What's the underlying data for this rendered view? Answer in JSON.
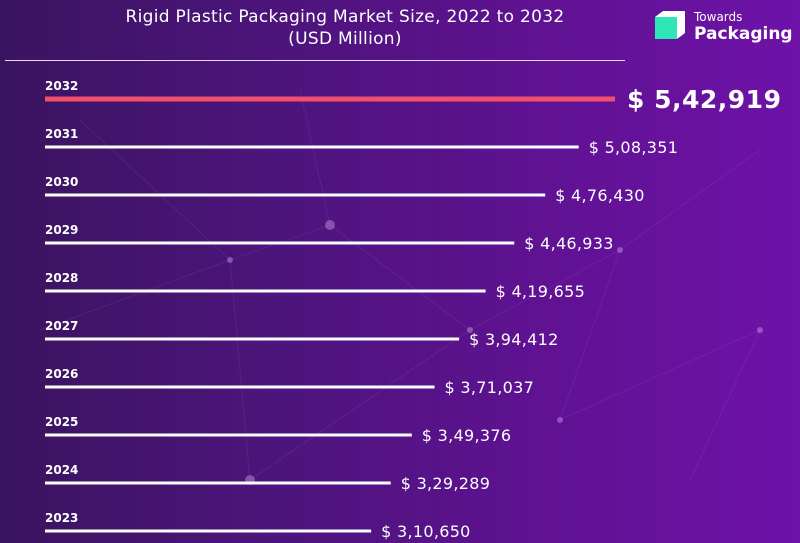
{
  "title": {
    "line1": "Rigid Plastic Packaging Market Size, 2022 to 2032",
    "line2": "(USD Million)"
  },
  "logo": {
    "small": "Towards",
    "big": "Packaging",
    "icon": "packaging-cube-icon"
  },
  "colors": {
    "highlight_bar": "#f0506e",
    "bar": "#ffffff",
    "logo_green": "#2ee6b8"
  },
  "chart_data": {
    "type": "bar",
    "orientation": "horizontal",
    "title": "Rigid Plastic Packaging Market Size, 2022 to 2032 (USD Million)",
    "unit_prefix": "$",
    "categories": [
      "2032",
      "2031",
      "2030",
      "2029",
      "2028",
      "2027",
      "2026",
      "2025",
      "2024",
      "2023"
    ],
    "values": [
      542919,
      508351,
      476430,
      446933,
      419655,
      394412,
      371037,
      349376,
      329289,
      310650
    ],
    "value_labels": [
      "$ 5,42,919",
      "$ 5,08,351",
      "$ 4,76,430",
      "$ 4,46,933",
      "$ 4,19,655",
      "$ 3,94,412",
      "$ 3,71,037",
      "$ 3,49,376",
      "$ 3,29,289",
      "$ 3,10,650"
    ],
    "highlight_category": "2032",
    "xlabel": "",
    "ylabel": ""
  }
}
